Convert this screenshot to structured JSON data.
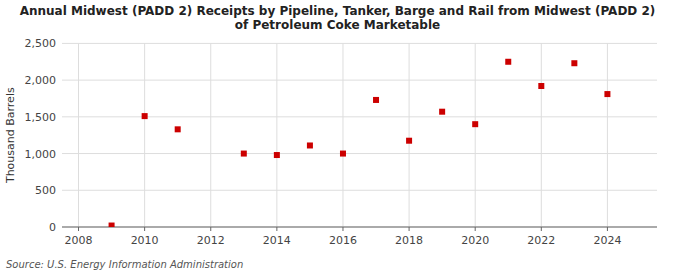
{
  "chart_data": {
    "type": "scatter",
    "title": "Annual Midwest (PADD 2) Receipts by Pipeline, Tanker, Barge and Rail from Midwest (PADD 2)\nof Petroleum Coke Marketable",
    "ylabel": "Thousand Barrels",
    "source": "Source: U.S. Energy Information Administration",
    "x": [
      2009,
      2010,
      2011,
      2013,
      2014,
      2015,
      2016,
      2017,
      2018,
      2019,
      2020,
      2021,
      2022,
      2023,
      2024
    ],
    "values": [
      20,
      1510,
      1330,
      1000,
      980,
      1110,
      1000,
      1730,
      1175,
      1570,
      1400,
      2250,
      1920,
      2230,
      1810
    ],
    "color": "#cc0000",
    "marker": "square",
    "xlim": [
      2007.5,
      2025.5
    ],
    "ylim": [
      0,
      2500
    ],
    "xticks": [
      2008,
      2010,
      2012,
      2014,
      2016,
      2018,
      2020,
      2022,
      2024
    ],
    "yticks": [
      0,
      500,
      {
        "value": 1000,
        "label": "1,000"
      },
      {
        "value": 1500,
        "label": "1,500"
      },
      {
        "value": 2000,
        "label": "2,000"
      },
      {
        "value": 2500,
        "label": "2,500"
      }
    ],
    "grid": true
  }
}
